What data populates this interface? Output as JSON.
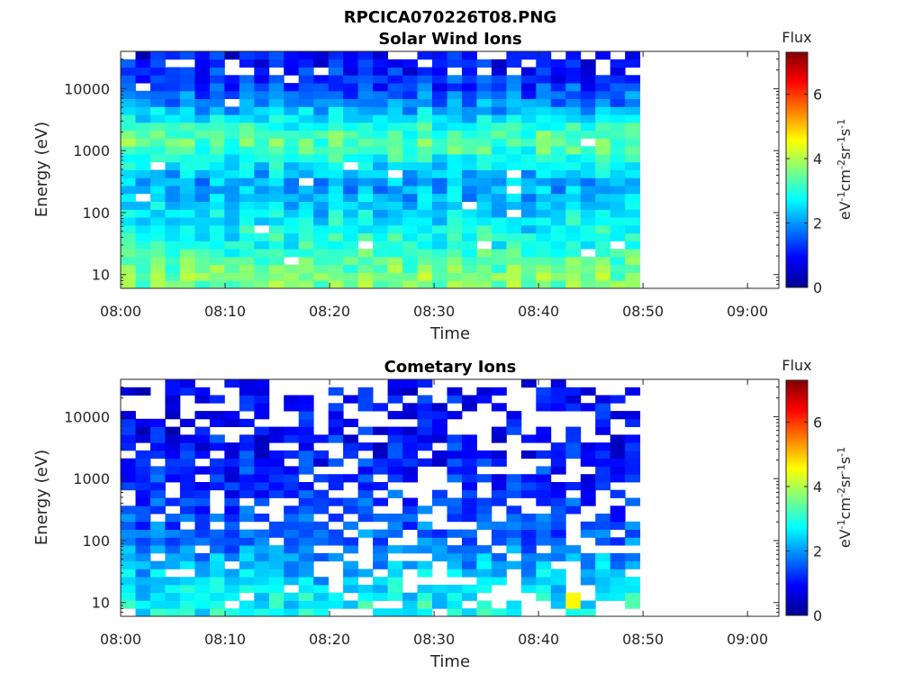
{
  "title": "RPCICA070226T08.PNG",
  "chart_data": [
    {
      "type": "heatmap",
      "title": "Solar Wind Ions",
      "xlabel": "Time",
      "ylabel": "Energy (eV)",
      "x_ticks": [
        "08:00",
        "08:10",
        "08:20",
        "08:30",
        "08:40",
        "08:50",
        "09:00"
      ],
      "y_ticks": [
        "10",
        "100",
        "1000",
        "10000"
      ],
      "y_scale": "log",
      "ylim": [
        6,
        40000
      ],
      "xlim_minutes": [
        0,
        63
      ],
      "data_end_minutes": 49.7,
      "colorbar": {
        "title": "Flux",
        "label": "eV-1cm-2sr-1s-1",
        "ticks": [
          "0",
          "2",
          "4",
          "6"
        ],
        "range": [
          0,
          7.3
        ],
        "colormap": "jet"
      },
      "typical_flux_by_energy": [
        {
          "energy_eV": 10,
          "flux": 3.6
        },
        {
          "energy_eV": 30,
          "flux": 2.9
        },
        {
          "energy_eV": 100,
          "flux": 2.4
        },
        {
          "energy_eV": 300,
          "flux": 2.0
        },
        {
          "energy_eV": 1500,
          "flux": 3.4
        },
        {
          "energy_eV": 10000,
          "flux": 1.3
        },
        {
          "energy_eV": 30000,
          "flux": 0.9
        }
      ],
      "grid": false
    },
    {
      "type": "heatmap",
      "title": "Cometary Ions",
      "xlabel": "Time",
      "ylabel": "Energy (eV)",
      "x_ticks": [
        "08:00",
        "08:10",
        "08:20",
        "08:30",
        "08:40",
        "08:50",
        "09:00"
      ],
      "y_ticks": [
        "10",
        "100",
        "1000",
        "10000"
      ],
      "y_scale": "log",
      "ylim": [
        6,
        40000
      ],
      "xlim_minutes": [
        0,
        63
      ],
      "data_end_minutes": 49.7,
      "colorbar": {
        "title": "Flux",
        "label": "eV-1cm-2sr-1s-1",
        "ticks": [
          "0",
          "2",
          "4",
          "6"
        ],
        "range": [
          0,
          7.3
        ],
        "colormap": "jet"
      },
      "typical_flux_by_energy": [
        {
          "energy_eV": 10,
          "flux": 2.7
        },
        {
          "energy_eV": 30,
          "flux": 2.2
        },
        {
          "energy_eV": 100,
          "flux": 1.6
        },
        {
          "energy_eV": 1000,
          "flux": 1.1
        },
        {
          "energy_eV": 10000,
          "flux": 0.8
        }
      ],
      "peak_flux": {
        "time": "08:43",
        "energy_eV": 10,
        "flux": 4.6
      },
      "grid": false
    }
  ],
  "colors": {
    "axis": "#262626",
    "background": "#ffffff"
  }
}
